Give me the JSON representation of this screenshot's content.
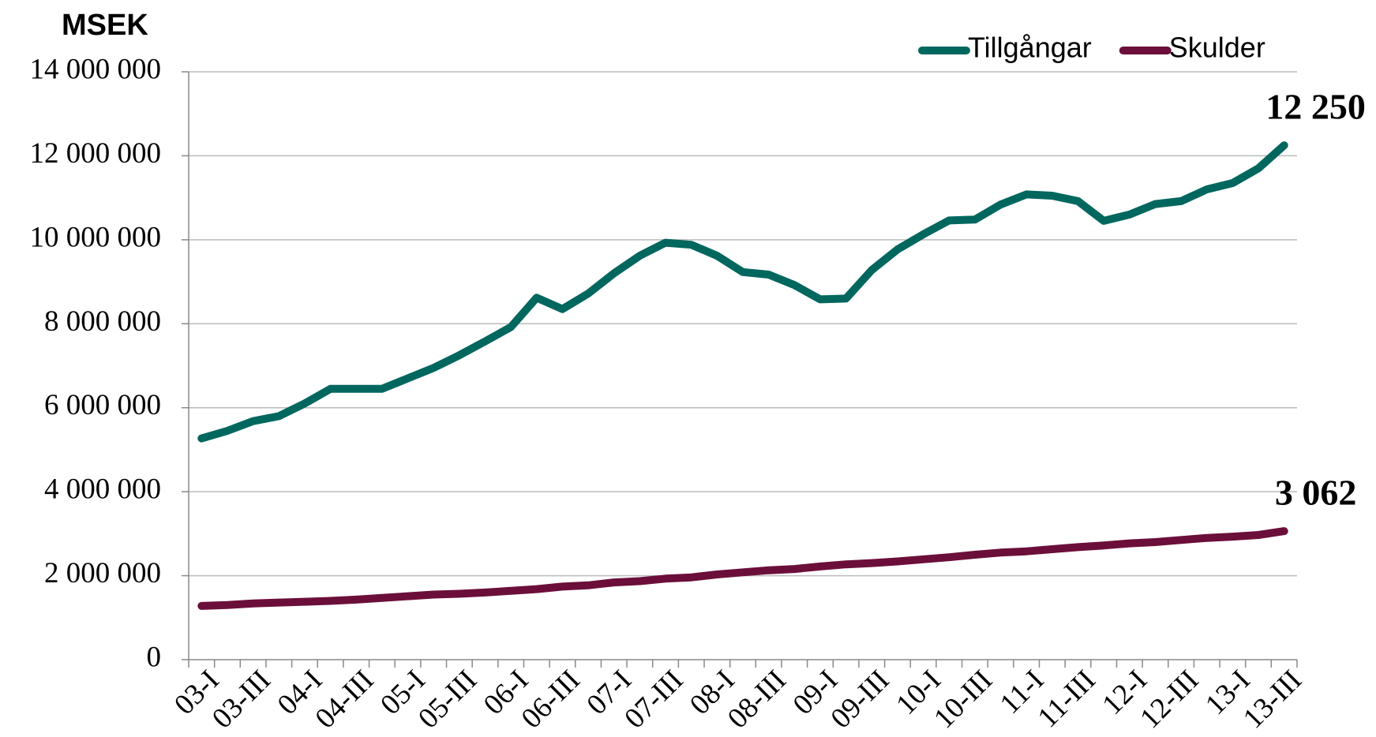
{
  "chart_data": {
    "type": "line",
    "title": "MSEK",
    "categories": [
      "03-I",
      null,
      "03-III",
      null,
      "04-I",
      null,
      "04-III",
      null,
      "05-I",
      null,
      "05-III",
      null,
      "06-I",
      null,
      "06-III",
      null,
      "07-I",
      null,
      "07-III",
      null,
      "08-I",
      null,
      "08-III",
      null,
      "09-I",
      null,
      "09-III",
      null,
      "10-I",
      null,
      "10-III",
      null,
      "11-I",
      null,
      "11-III",
      null,
      "12-I",
      null,
      "12-III",
      null,
      "13-I",
      null,
      "13-III"
    ],
    "series": [
      {
        "name": "Tillgångar",
        "color": "#00675f",
        "end_label": "12 250",
        "values": [
          5270000,
          5450000,
          5680000,
          5800000,
          6100000,
          6450000,
          6450000,
          6450000,
          6700000,
          6950000,
          7250000,
          7580000,
          7920000,
          8620000,
          8350000,
          8720000,
          9200000,
          9620000,
          9930000,
          9880000,
          9620000,
          9230000,
          9170000,
          8920000,
          8580000,
          8600000,
          9280000,
          9770000,
          10130000,
          10460000,
          10480000,
          10840000,
          11080000,
          11050000,
          10920000,
          10450000,
          10600000,
          10850000,
          10920000,
          11200000,
          11350000,
          11700000,
          12250000
        ]
      },
      {
        "name": "Skulder",
        "color": "#6b0f3a",
        "end_label": "3 062",
        "values": [
          1280000,
          1300000,
          1340000,
          1360000,
          1380000,
          1400000,
          1430000,
          1470000,
          1510000,
          1550000,
          1570000,
          1600000,
          1640000,
          1680000,
          1740000,
          1770000,
          1840000,
          1870000,
          1930000,
          1960000,
          2030000,
          2080000,
          2130000,
          2160000,
          2220000,
          2270000,
          2300000,
          2340000,
          2390000,
          2440000,
          2500000,
          2550000,
          2580000,
          2630000,
          2680000,
          2720000,
          2770000,
          2800000,
          2850000,
          2900000,
          2930000,
          2970000,
          3062000
        ]
      }
    ],
    "ylim": [
      0,
      14000000
    ],
    "yticks": [
      0,
      {
        "value": 2000000,
        "label": "2 000 000"
      },
      {
        "value": 4000000,
        "label": "4 000 000"
      },
      {
        "value": 6000000,
        "label": "6 000 000"
      },
      {
        "value": 8000000,
        "label": "8 000 000"
      },
      {
        "value": 10000000,
        "label": "10 000 000"
      },
      {
        "value": 12000000,
        "label": "12 000 000"
      },
      {
        "value": 14000000,
        "label": "14 000 000"
      }
    ],
    "grid": true,
    "legend": "top-right"
  }
}
